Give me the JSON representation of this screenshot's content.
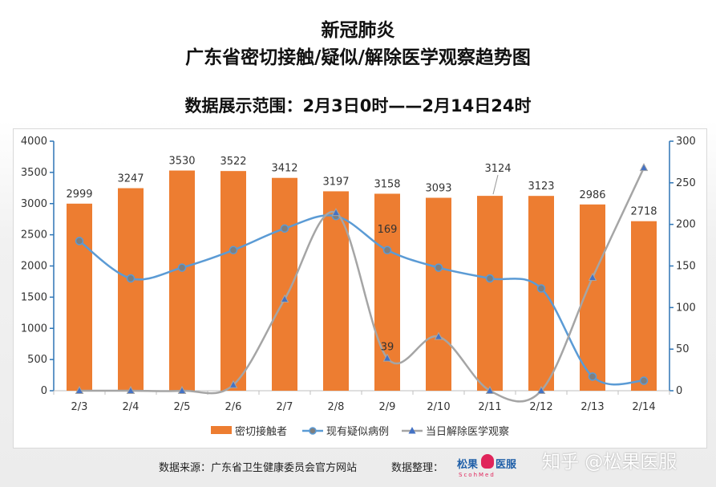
{
  "header": {
    "title_line1": "新冠肺炎",
    "title_line2": "广东省密切接触/疑似/解除医学观察趋势图",
    "range_text": "数据展示范围：2月3日0时——2月14日24时"
  },
  "footer": {
    "source_text": "数据来源：广东省卫生健康委员会官方网站",
    "organizer_label": "数据整理：",
    "logo_left": "松果",
    "logo_right": "医服",
    "logo_sub": "ScohMed"
  },
  "watermark": "知乎 @松果医服",
  "chart_data": {
    "type": "bar",
    "categories": [
      "2/3",
      "2/4",
      "2/5",
      "2/6",
      "2/7",
      "2/8",
      "2/9",
      "2/10",
      "2/11",
      "2/12",
      "2/13",
      "2/14"
    ],
    "y_left": {
      "min": 0,
      "max": 4000,
      "ticks": [
        0,
        500,
        1000,
        1500,
        2000,
        2500,
        3000,
        3500,
        4000
      ]
    },
    "y_right": {
      "min": 0,
      "max": 300,
      "ticks": [
        0,
        50,
        100,
        150,
        200,
        250,
        300
      ]
    },
    "series": [
      {
        "name": "密切接触者",
        "kind": "bar",
        "axis": "left",
        "color": "#ed7d31",
        "values": [
          2999,
          3247,
          3530,
          3522,
          3412,
          3197,
          3158,
          3093,
          3124,
          3123,
          2986,
          2718
        ],
        "data_labels": [
          "2999",
          "3247",
          "3530",
          "3522",
          "3412",
          "3197",
          "3158",
          "3093",
          "3124",
          "3123",
          "2986",
          "2718"
        ]
      },
      {
        "name": "现有疑似病例",
        "kind": "line",
        "axis": "right",
        "color": "#5b9bd5",
        "marker": "circle",
        "values": [
          180,
          135,
          148,
          169,
          195,
          210,
          169,
          148,
          135,
          123,
          17,
          12
        ],
        "data_labels": [
          "",
          "",
          "",
          "",
          "",
          "",
          "169",
          "",
          "",
          "",
          "",
          ""
        ]
      },
      {
        "name": "当日解除医学观察",
        "kind": "line",
        "axis": "right",
        "color": "#a5a5a5",
        "marker": "triangle",
        "values": [
          0,
          0,
          0,
          7,
          110,
          214,
          39,
          65,
          0,
          0,
          136,
          268
        ],
        "data_labels": [
          "",
          "",
          "",
          "",
          "",
          "",
          "39",
          "",
          "",
          "",
          "",
          ""
        ]
      }
    ],
    "grid": false,
    "legend_position": "bottom"
  }
}
